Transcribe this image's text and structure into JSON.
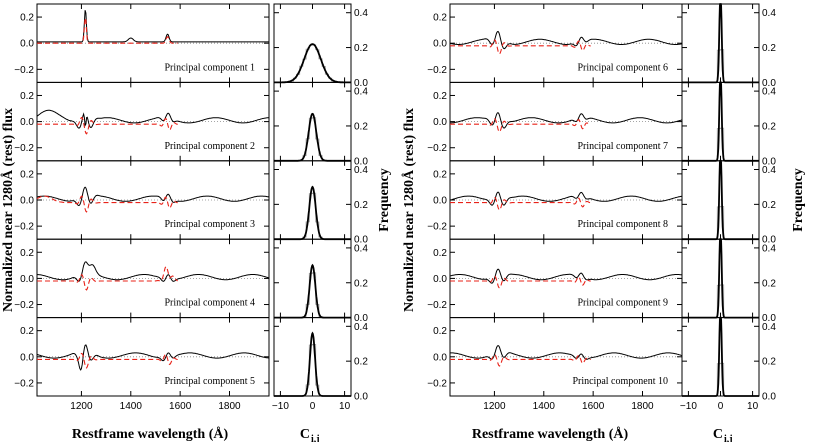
{
  "figure": {
    "xlabel_spectrum": "Restframe wavelength (Å)",
    "xlabel_hist_main": "C",
    "xlabel_hist_sub": "i,j",
    "ylabel_left": "Normalized near 1280Å (rest) flux",
    "ylabel_right": "Frequency"
  },
  "chart_data": [
    {
      "type": "line",
      "panel_group": "spectrum-panels",
      "xlabel": "Restframe wavelength (Å)",
      "ylabel": "Normalized near 1280Å (rest) flux",
      "xlim": [
        1020,
        1960
      ],
      "ylim": [
        -0.3,
        0.3
      ],
      "xticks": [
        1200,
        1400,
        1600,
        1800
      ],
      "yticks": [
        -0.2,
        0.0,
        0.2
      ],
      "ytick_labels": [
        "−0.2",
        "0.0",
        "0.2"
      ],
      "panels": [
        {
          "label": "Principal component 1",
          "series": [
            {
              "color": "#000000"
            },
            {
              "color": "#e8231a",
              "style": "dashed"
            }
          ]
        },
        {
          "label": "Principal component 2",
          "series": [
            {
              "color": "#000000"
            },
            {
              "color": "#e8231a",
              "style": "dashed"
            }
          ]
        },
        {
          "label": "Principal component 3",
          "series": [
            {
              "color": "#000000"
            },
            {
              "color": "#e8231a",
              "style": "dashed"
            }
          ]
        },
        {
          "label": "Principal component 4",
          "series": [
            {
              "color": "#000000"
            },
            {
              "color": "#e8231a",
              "style": "dashed"
            }
          ]
        },
        {
          "label": "Principal component 5",
          "series": [
            {
              "color": "#000000"
            },
            {
              "color": "#e8231a",
              "style": "dashed"
            }
          ]
        },
        {
          "label": "Principal component 6",
          "series": [
            {
              "color": "#000000"
            },
            {
              "color": "#e8231a",
              "style": "dashed"
            }
          ]
        },
        {
          "label": "Principal component 7",
          "series": [
            {
              "color": "#000000"
            },
            {
              "color": "#e8231a",
              "style": "dashed"
            }
          ]
        },
        {
          "label": "Principal component 8",
          "series": [
            {
              "color": "#000000"
            },
            {
              "color": "#e8231a",
              "style": "dashed"
            }
          ]
        },
        {
          "label": "Principal component 9",
          "series": [
            {
              "color": "#000000"
            },
            {
              "color": "#e8231a",
              "style": "dashed"
            }
          ]
        },
        {
          "label": "Principal component 10",
          "series": [
            {
              "color": "#000000"
            },
            {
              "color": "#e8231a",
              "style": "dashed"
            }
          ]
        }
      ]
    },
    {
      "type": "line",
      "panel_group": "histogram-panels",
      "xlabel": "C i,j",
      "ylabel": "Frequency",
      "xlim": [
        -12,
        12
      ],
      "ylim": [
        0,
        0.45
      ],
      "xticks": [
        -10,
        0,
        10
      ],
      "xtick_labels": [
        "−10",
        "0",
        "10"
      ],
      "yticks": [
        0.0,
        0.2,
        0.4
      ],
      "ytick_labels": [
        "0.0",
        "0.2",
        "0.4"
      ],
      "histogram_peak_and_width": [
        {
          "component": 1,
          "peak": 0.22,
          "sigma": 2.6
        },
        {
          "component": 2,
          "peak": 0.27,
          "sigma": 1.2
        },
        {
          "component": 3,
          "peak": 0.3,
          "sigma": 1.0
        },
        {
          "component": 4,
          "peak": 0.3,
          "sigma": 0.9
        },
        {
          "component": 5,
          "peak": 0.36,
          "sigma": 0.8
        },
        {
          "component": 6,
          "peak": 0.52,
          "sigma": 0.35
        },
        {
          "component": 7,
          "peak": 0.52,
          "sigma": 0.35
        },
        {
          "component": 8,
          "peak": 0.52,
          "sigma": 0.35
        },
        {
          "component": 9,
          "peak": 0.52,
          "sigma": 0.35
        },
        {
          "component": 10,
          "peak": 0.52,
          "sigma": 0.35
        }
      ]
    }
  ]
}
